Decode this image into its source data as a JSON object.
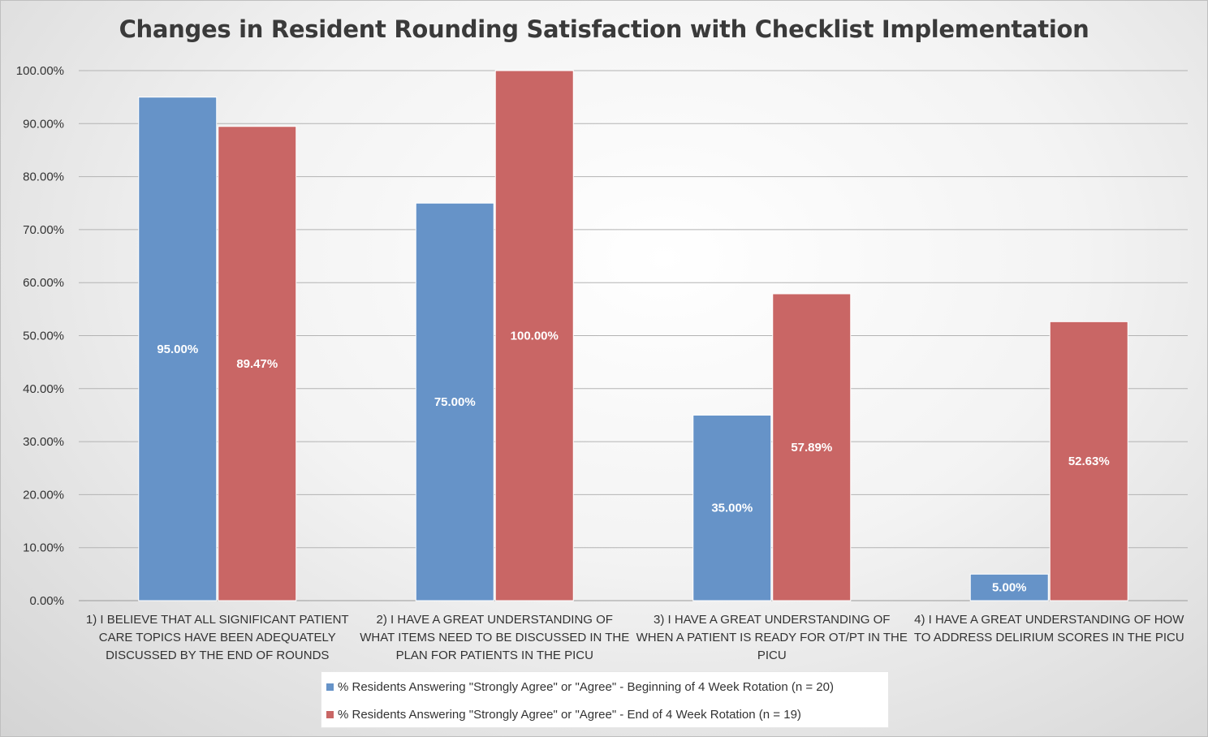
{
  "chart_data": {
    "type": "bar",
    "title": "Changes in Resident Rounding Satisfaction with Checklist Implementation",
    "categories": [
      "1) I believe that all significant patient care topics have been adequately discussed by the end of rounds",
      "2) I have a great understanding of what items need to be discussed in the plan for patients in the PICU",
      "3) I have a great understanding of when a patient is ready for OT/PT in the PICU",
      "4) I have a great understanding of how to address delirium scores in the PICU"
    ],
    "category_lines": [
      [
        "1) I BELIEVE THAT ALL SIGNIFICANT PATIENT",
        "CARE TOPICS HAVE BEEN ADEQUATELY",
        "DISCUSSED BY THE END OF ROUNDS"
      ],
      [
        "2) I HAVE A GREAT UNDERSTANDING OF",
        "WHAT ITEMS NEED TO BE DISCUSSED IN THE",
        "PLAN FOR PATIENTS IN THE PICU"
      ],
      [
        "3) I HAVE A GREAT UNDERSTANDING OF",
        "WHEN A PATIENT IS READY FOR OT/PT IN THE",
        "PICU"
      ],
      [
        "4) I HAVE A GREAT UNDERSTANDING OF HOW",
        "TO ADDRESS DELIRIUM SCORES IN THE PICU"
      ]
    ],
    "series": [
      {
        "name": "% Residents Answering \"Strongly Agree\" or \"Agree\" - Beginning of 4 Week Rotation (n = 20)",
        "values": [
          95.0,
          75.0,
          35.0,
          5.0
        ],
        "labels": [
          "95.00%",
          "75.00%",
          "35.00%",
          "5.00%"
        ],
        "color": "#6693c8"
      },
      {
        "name": "% Residents Answering \"Strongly Agree\" or \"Agree\" - End of 4 Week Rotation (n = 19)",
        "values": [
          89.47,
          100.0,
          57.89,
          52.63
        ],
        "labels": [
          "89.47%",
          "100.00%",
          "57.89%",
          "52.63%"
        ],
        "color": "#c96665"
      }
    ],
    "ylim": [
      0,
      100
    ],
    "yticks": [
      0,
      10,
      20,
      30,
      40,
      50,
      60,
      70,
      80,
      90,
      100
    ],
    "ytick_labels": [
      "0.00%",
      "10.00%",
      "20.00%",
      "30.00%",
      "40.00%",
      "50.00%",
      "60.00%",
      "70.00%",
      "80.00%",
      "90.00%",
      "100.00%"
    ],
    "grid": true,
    "legend_position": "bottom"
  }
}
